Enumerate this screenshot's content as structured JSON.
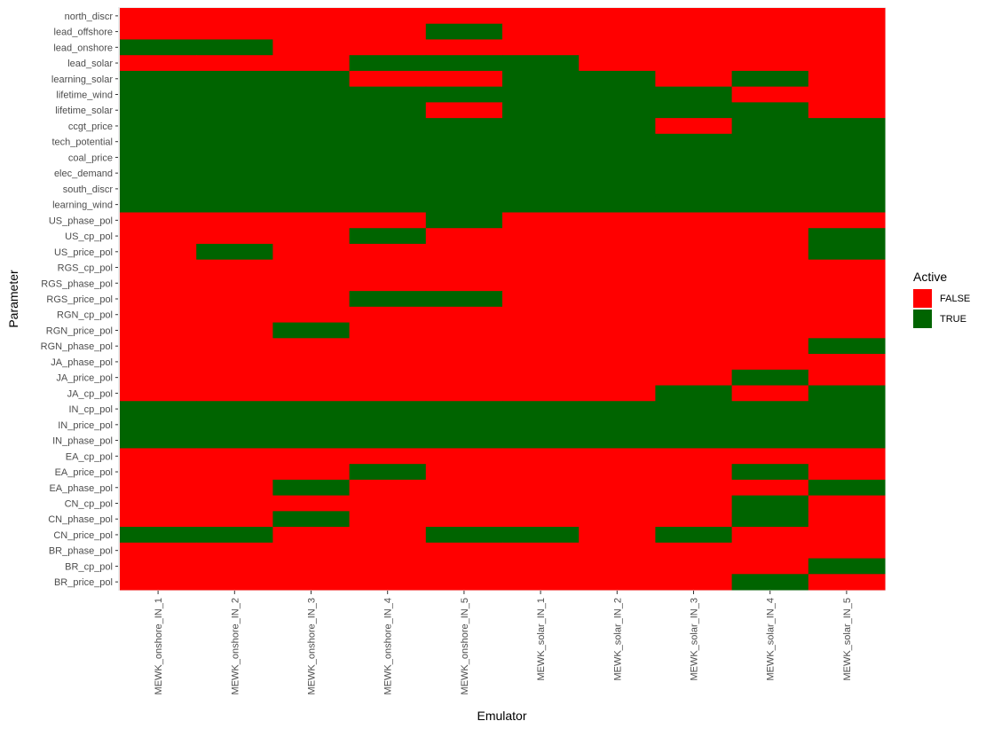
{
  "chart_data": {
    "type": "heatmap",
    "xlabel": "Emulator",
    "ylabel": "Parameter",
    "x_categories": [
      "MEWK_onshore_IN_1",
      "MEWK_onshore_IN_2",
      "MEWK_onshore_IN_3",
      "MEWK_onshore_IN_4",
      "MEWK_onshore_IN_5",
      "MEWK_solar_IN_1",
      "MEWK_solar_IN_2",
      "MEWK_solar_IN_3",
      "MEWK_solar_IN_4",
      "MEWK_solar_IN_5"
    ],
    "y_categories": [
      "north_discr",
      "lead_offshore",
      "lead_onshore",
      "lead_solar",
      "learning_solar",
      "lifetime_wind",
      "lifetime_solar",
      "ccgt_price",
      "tech_potential",
      "coal_price",
      "elec_demand",
      "south_discr",
      "learning_wind",
      "US_phase_pol",
      "US_cp_pol",
      "US_price_pol",
      "RGS_cp_pol",
      "RGS_phase_pol",
      "RGS_price_pol",
      "RGN_cp_pol",
      "RGN_price_pol",
      "RGN_phase_pol",
      "JA_phase_pol",
      "JA_price_pol",
      "JA_cp_pol",
      "IN_cp_pol",
      "IN_price_pol",
      "IN_phase_pol",
      "EA_cp_pol",
      "EA_price_pol",
      "EA_phase_pol",
      "CN_cp_pol",
      "CN_phase_pol",
      "CN_price_pol",
      "BR_phase_pol",
      "BR_cp_pol",
      "BR_price_pol"
    ],
    "values": [
      [
        0,
        0,
        0,
        0,
        0,
        0,
        0,
        0,
        0,
        0
      ],
      [
        0,
        0,
        0,
        0,
        1,
        0,
        0,
        0,
        0,
        0
      ],
      [
        1,
        1,
        0,
        0,
        0,
        0,
        0,
        0,
        0,
        0
      ],
      [
        0,
        0,
        0,
        1,
        1,
        1,
        0,
        0,
        0,
        0
      ],
      [
        1,
        1,
        1,
        0,
        0,
        1,
        1,
        0,
        1,
        0
      ],
      [
        1,
        1,
        1,
        1,
        1,
        1,
        1,
        1,
        0,
        0
      ],
      [
        1,
        1,
        1,
        1,
        0,
        1,
        1,
        1,
        1,
        0
      ],
      [
        1,
        1,
        1,
        1,
        1,
        1,
        1,
        0,
        1,
        1
      ],
      [
        1,
        1,
        1,
        1,
        1,
        1,
        1,
        1,
        1,
        1
      ],
      [
        1,
        1,
        1,
        1,
        1,
        1,
        1,
        1,
        1,
        1
      ],
      [
        1,
        1,
        1,
        1,
        1,
        1,
        1,
        1,
        1,
        1
      ],
      [
        1,
        1,
        1,
        1,
        1,
        1,
        1,
        1,
        1,
        1
      ],
      [
        1,
        1,
        1,
        1,
        1,
        1,
        1,
        1,
        1,
        1
      ],
      [
        0,
        0,
        0,
        0,
        1,
        0,
        0,
        0,
        0,
        0
      ],
      [
        0,
        0,
        0,
        1,
        0,
        0,
        0,
        0,
        0,
        1
      ],
      [
        0,
        1,
        0,
        0,
        0,
        0,
        0,
        0,
        0,
        1
      ],
      [
        0,
        0,
        0,
        0,
        0,
        0,
        0,
        0,
        0,
        0
      ],
      [
        0,
        0,
        0,
        0,
        0,
        0,
        0,
        0,
        0,
        0
      ],
      [
        0,
        0,
        0,
        1,
        1,
        0,
        0,
        0,
        0,
        0
      ],
      [
        0,
        0,
        0,
        0,
        0,
        0,
        0,
        0,
        0,
        0
      ],
      [
        0,
        0,
        1,
        0,
        0,
        0,
        0,
        0,
        0,
        0
      ],
      [
        0,
        0,
        0,
        0,
        0,
        0,
        0,
        0,
        0,
        1
      ],
      [
        0,
        0,
        0,
        0,
        0,
        0,
        0,
        0,
        0,
        0
      ],
      [
        0,
        0,
        0,
        0,
        0,
        0,
        0,
        0,
        1,
        0
      ],
      [
        0,
        0,
        0,
        0,
        0,
        0,
        0,
        1,
        0,
        1
      ],
      [
        1,
        1,
        1,
        1,
        1,
        1,
        1,
        1,
        1,
        1
      ],
      [
        1,
        1,
        1,
        1,
        1,
        1,
        1,
        1,
        1,
        1
      ],
      [
        1,
        1,
        1,
        1,
        1,
        1,
        1,
        1,
        1,
        1
      ],
      [
        0,
        0,
        0,
        0,
        0,
        0,
        0,
        0,
        0,
        0
      ],
      [
        0,
        0,
        0,
        1,
        0,
        0,
        0,
        0,
        1,
        0
      ],
      [
        0,
        0,
        1,
        0,
        0,
        0,
        0,
        0,
        0,
        1
      ],
      [
        0,
        0,
        0,
        0,
        0,
        0,
        0,
        0,
        1,
        0
      ],
      [
        0,
        0,
        1,
        0,
        0,
        0,
        0,
        0,
        1,
        0
      ],
      [
        1,
        1,
        0,
        0,
        1,
        1,
        0,
        1,
        0,
        0
      ],
      [
        0,
        0,
        0,
        0,
        0,
        0,
        0,
        0,
        0,
        0
      ],
      [
        0,
        0,
        0,
        0,
        0,
        0,
        0,
        0,
        0,
        1
      ],
      [
        0,
        0,
        0,
        0,
        0,
        0,
        0,
        0,
        1,
        0
      ]
    ],
    "legend": {
      "title": "Active",
      "placement": "right",
      "entries": [
        {
          "label": "FALSE",
          "color": "#ff0000"
        },
        {
          "label": "TRUE",
          "color": "#006400"
        }
      ]
    },
    "colors": {
      "false": "#ff0000",
      "true": "#006400",
      "panel": "#ebebeb",
      "grid": "#ffffff"
    }
  }
}
